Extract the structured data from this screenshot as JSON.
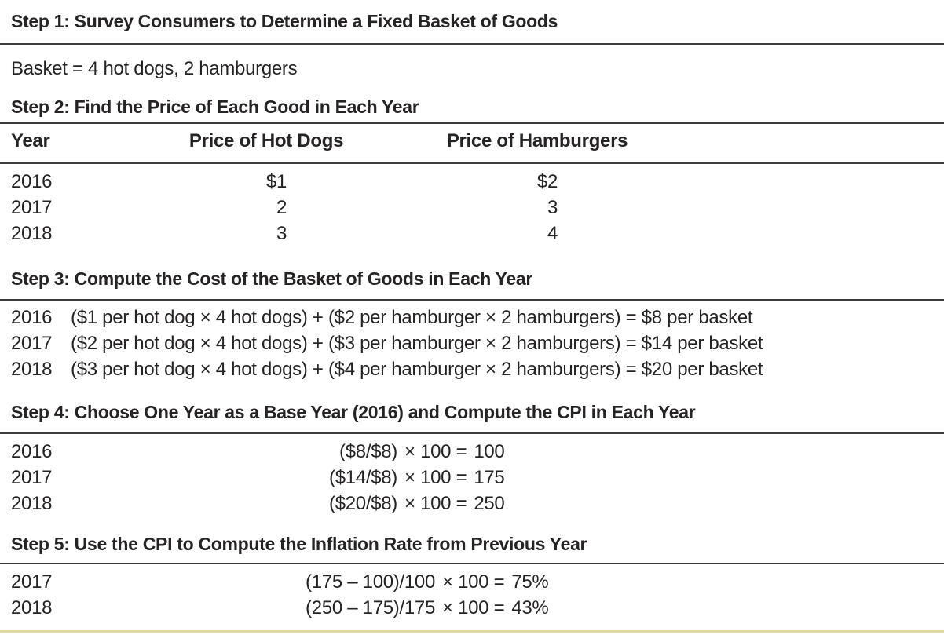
{
  "colors": {
    "text": "#262324",
    "rule_dark": "#3d3a3b",
    "rule_accent": "#ddd6a7",
    "background": "#ffffff"
  },
  "steps": [
    {
      "title": "Step 1: Survey Consumers to Determine a Fixed Basket of Goods",
      "content": "Basket = 4 hot dogs, 2 hamburgers"
    },
    {
      "title": "Step 2: Find the Price of Each Good in Each Year",
      "table": {
        "headers": [
          "Year",
          "Price of Hot Dogs",
          "Price of Hamburgers"
        ],
        "rows": [
          [
            "2016",
            "$1",
            "$2"
          ],
          [
            "2017",
            "2",
            "3"
          ],
          [
            "2018",
            "3",
            "4"
          ]
        ]
      }
    },
    {
      "title": "Step 3: Compute the Cost of the Basket of Goods in Each Year",
      "rows": [
        {
          "year": "2016",
          "formula": "($1 per hot dog × 4 hot dogs) + ($2 per hamburger × 2 hamburgers) = $8 per basket"
        },
        {
          "year": "2017",
          "formula": "($2 per hot dog × 4 hot dogs) + ($3 per hamburger × 2 hamburgers) = $14 per basket"
        },
        {
          "year": "2018",
          "formula": "($3 per hot dog × 4 hot dogs) + ($4 per hamburger × 2 hamburgers) = $20 per basket"
        }
      ]
    },
    {
      "title": "Step 4: Choose One Year as a Base Year (2016) and Compute the CPI in Each Year",
      "rows": [
        {
          "year": "2016",
          "frac": "($8/$8)",
          "op": "× 100 =",
          "result": "100"
        },
        {
          "year": "2017",
          "frac": "($14/$8)",
          "op": "× 100 =",
          "result": "175"
        },
        {
          "year": "2018",
          "frac": "($20/$8)",
          "op": "× 100 =",
          "result": "250"
        }
      ]
    },
    {
      "title": "Step 5: Use the CPI to Compute the Inflation Rate from Previous Year",
      "rows": [
        {
          "year": "2017",
          "frac": "(175 – 100)/100",
          "op": "× 100 =",
          "result": "75%"
        },
        {
          "year": "2018",
          "frac": "(250 – 175)/175",
          "op": "× 100 =",
          "result": "43%"
        }
      ]
    }
  ]
}
